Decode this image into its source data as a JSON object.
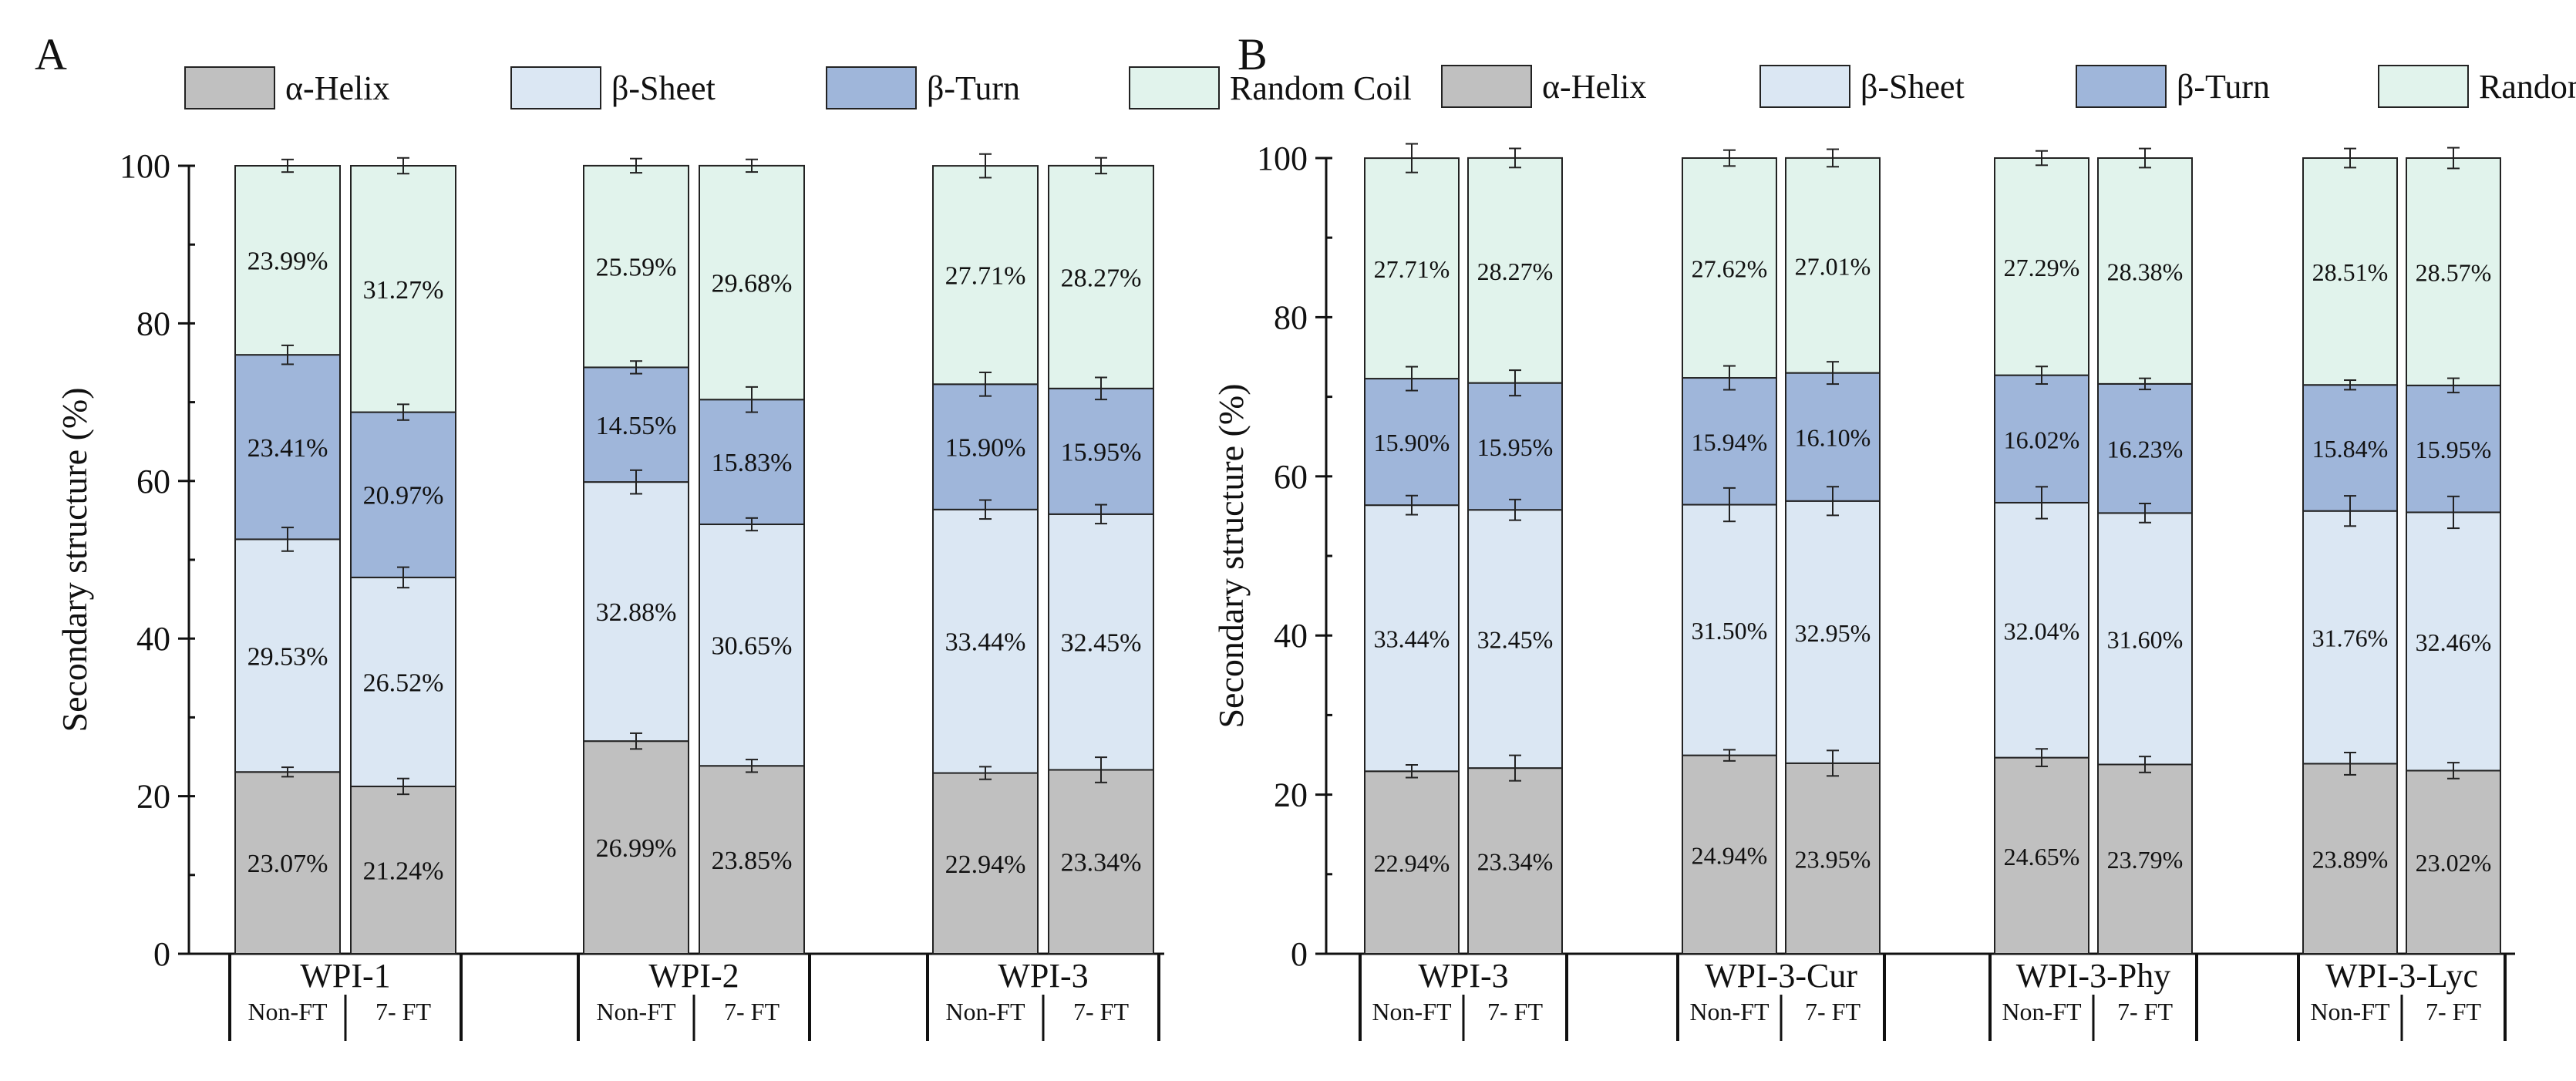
{
  "legend": [
    {
      "label": "α-Helix",
      "color": "#c0c0c0"
    },
    {
      "label": "β-Sheet",
      "color": "#dbe7f3"
    },
    {
      "label": "β-Turn",
      "color": "#9fb6da"
    },
    {
      "label": "Random Coil",
      "color": "#e1f3ec"
    }
  ],
  "sub_labels": [
    "Non-FT",
    "7- FT"
  ],
  "chart_data": [
    {
      "type": "bar",
      "stacked": true,
      "panel": "A",
      "ylabel": "Secondary structure (%)",
      "ylim": [
        0,
        100
      ],
      "yticks": [
        0,
        20,
        40,
        60,
        80,
        100
      ],
      "groups": [
        {
          "name": "WPI-1",
          "bars": [
            {
              "label": "Non-FT",
              "values": [
                23.07,
                29.53,
                23.41,
                23.99
              ],
              "labels": [
                "23.07%",
                "29.53%",
                "23.41%",
                "23.99%"
              ],
              "errors": [
                0.6,
                1.5,
                1.2,
                0.8
              ]
            },
            {
              "label": "7- FT",
              "values": [
                21.24,
                26.52,
                20.97,
                31.27
              ],
              "labels": [
                "21.24%",
                "26.52%",
                "20.97%",
                "31.27%"
              ],
              "errors": [
                1.0,
                1.3,
                1.0,
                1.0
              ]
            }
          ]
        },
        {
          "name": "WPI-2",
          "bars": [
            {
              "label": "Non-FT",
              "values": [
                26.99,
                32.88,
                14.55,
                25.59
              ],
              "labels": [
                "26.99%",
                "32.88%",
                "14.55%",
                "25.59%"
              ],
              "errors": [
                1.0,
                1.5,
                0.8,
                0.9
              ]
            },
            {
              "label": "7- FT",
              "values": [
                23.85,
                30.65,
                15.83,
                29.68
              ],
              "labels": [
                "23.85%",
                "30.65%",
                "15.83%",
                "29.68%"
              ],
              "errors": [
                0.8,
                0.8,
                1.6,
                0.8
              ]
            }
          ]
        },
        {
          "name": "WPI-3",
          "bars": [
            {
              "label": "Non-FT",
              "values": [
                22.94,
                33.44,
                15.9,
                27.71
              ],
              "labels": [
                "22.94%",
                "33.44%",
                "15.90%",
                "27.71%"
              ],
              "errors": [
                0.8,
                1.2,
                1.5,
                1.5
              ]
            },
            {
              "label": "7- FT",
              "values": [
                23.34,
                32.45,
                15.95,
                28.27
              ],
              "labels": [
                "23.34%",
                "32.45%",
                "15.95%",
                "28.27%"
              ],
              "errors": [
                1.6,
                1.2,
                1.4,
                1.0
              ]
            }
          ]
        }
      ]
    },
    {
      "type": "bar",
      "stacked": true,
      "panel": "B",
      "ylabel": "Secondary structure (%)",
      "ylim": [
        0,
        100
      ],
      "yticks": [
        0,
        20,
        40,
        60,
        80,
        100
      ],
      "groups": [
        {
          "name": "WPI-3",
          "bars": [
            {
              "label": "Non-FT",
              "values": [
                22.94,
                33.44,
                15.9,
                27.71
              ],
              "labels": [
                "22.94%",
                "33.44%",
                "15.90%",
                "27.71%"
              ],
              "errors": [
                0.8,
                1.2,
                1.5,
                1.8
              ]
            },
            {
              "label": "7- FT",
              "values": [
                23.34,
                32.45,
                15.95,
                28.27
              ],
              "labels": [
                "23.34%",
                "32.45%",
                "15.95%",
                "28.27%"
              ],
              "errors": [
                1.6,
                1.3,
                1.6,
                1.2
              ]
            }
          ]
        },
        {
          "name": "WPI-3-Cur",
          "bars": [
            {
              "label": "Non-FT",
              "values": [
                24.94,
                31.5,
                15.94,
                27.62
              ],
              "labels": [
                "24.94%",
                "31.50%",
                "15.94%",
                "27.62%"
              ],
              "errors": [
                0.7,
                2.1,
                1.5,
                1.0
              ]
            },
            {
              "label": "7- FT",
              "values": [
                23.95,
                32.95,
                16.1,
                27.01
              ],
              "labels": [
                "23.95%",
                "32.95%",
                "16.10%",
                "27.01%"
              ],
              "errors": [
                1.6,
                1.8,
                1.4,
                1.1
              ]
            }
          ]
        },
        {
          "name": "WPI-3-Phy",
          "bars": [
            {
              "label": "Non-FT",
              "values": [
                24.65,
                32.04,
                16.02,
                27.29
              ],
              "labels": [
                "24.65%",
                "32.04%",
                "16.02%",
                "27.29%"
              ],
              "errors": [
                1.1,
                2.0,
                1.1,
                0.9
              ]
            },
            {
              "label": "7- FT",
              "values": [
                23.79,
                31.6,
                16.23,
                28.38
              ],
              "labels": [
                "23.79%",
                "31.60%",
                "16.23%",
                "28.38%"
              ],
              "errors": [
                1.0,
                1.2,
                0.7,
                1.2
              ]
            }
          ]
        },
        {
          "name": "WPI-3-Lyc",
          "bars": [
            {
              "label": "Non-FT",
              "values": [
                23.89,
                31.76,
                15.84,
                28.51
              ],
              "labels": [
                "23.89%",
                "31.76%",
                "15.84%",
                "28.51%"
              ],
              "errors": [
                1.4,
                1.9,
                0.6,
                1.2
              ]
            },
            {
              "label": "7- FT",
              "values": [
                23.02,
                32.46,
                15.95,
                28.57
              ],
              "labels": [
                "23.02%",
                "32.46%",
                "15.95%",
                "28.57%"
              ],
              "errors": [
                1.0,
                2.0,
                0.9,
                1.3
              ]
            }
          ]
        }
      ]
    }
  ]
}
